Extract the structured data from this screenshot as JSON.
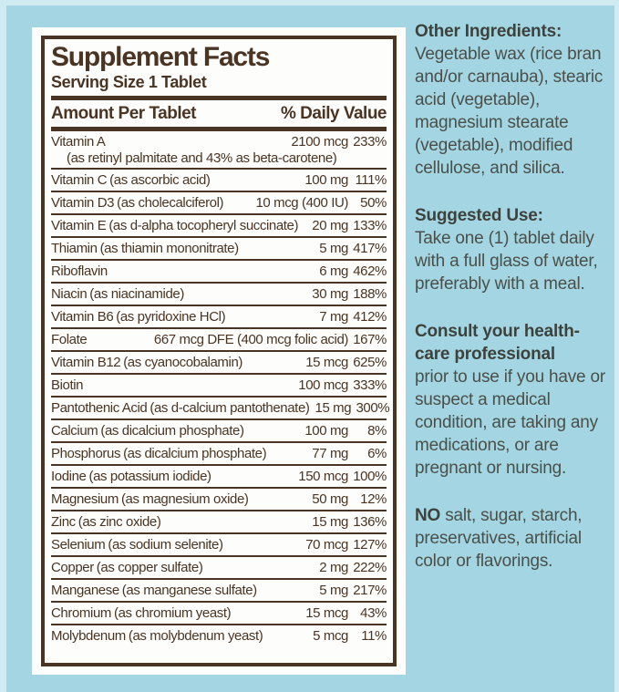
{
  "colors": {
    "bg": "#a3d6e2",
    "frame": "#cfeaf0",
    "paper": "#fdfdfb",
    "brown": "#4a3423",
    "gray": "#4b4f49",
    "gray-dark": "#3d423d"
  },
  "panel": {
    "title": "Supplement Facts",
    "serving": "Serving Size 1 Tablet",
    "col_amount": "Amount Per Tablet",
    "col_dv": "% Daily Value",
    "rows": [
      {
        "name": "Vitamin A",
        "form": "",
        "amount": "2100 mcg",
        "dv": "233%",
        "subline": "(as retinyl palmitate and 43% as beta-carotene)"
      },
      {
        "name": "Vitamin C",
        "form": "(as ascorbic acid)",
        "amount": "100 mg",
        "dv": "111%"
      },
      {
        "name": "Vitamin D3",
        "form": "(as cholecalciferol)",
        "amount": "10 mcg (400 IU)",
        "dv": "50%"
      },
      {
        "name": "Vitamin E",
        "form": "(as d-alpha tocopheryl succinate)",
        "amount": "20 mg",
        "dv": "133%"
      },
      {
        "name": "Thiamin",
        "form": "(as thiamin mononitrate)",
        "amount": "5 mg",
        "dv": "417%"
      },
      {
        "name": "Riboflavin",
        "form": "",
        "amount": "6 mg",
        "dv": "462%"
      },
      {
        "name": "Niacin",
        "form": "(as niacinamide)",
        "amount": "30 mg",
        "dv": "188%"
      },
      {
        "name": "Vitamin B6",
        "form": "(as pyridoxine HCl)",
        "amount": "7 mg",
        "dv": "412%"
      },
      {
        "name": "Folate",
        "form": "",
        "amount": "667 mcg DFE (400 mcg folic acid)",
        "dv": "167%"
      },
      {
        "name": "Vitamin B12",
        "form": "(as cyanocobalamin)",
        "amount": "15 mcg",
        "dv": "625%"
      },
      {
        "name": "Biotin",
        "form": "",
        "amount": "100 mcg",
        "dv": "333%"
      },
      {
        "name": "Pantothenic Acid",
        "form": "(as d-calcium pantothenate)",
        "amount": "15 mg",
        "dv": "300%"
      },
      {
        "name": "Calcium",
        "form": "(as dicalcium phosphate)",
        "amount": "100 mg",
        "dv": "8%"
      },
      {
        "name": "Phosphorus",
        "form": "(as dicalcium phosphate)",
        "amount": "77 mg",
        "dv": "6%"
      },
      {
        "name": "Iodine",
        "form": "(as potassium iodide)",
        "amount": "150 mcg",
        "dv": "100%"
      },
      {
        "name": "Magnesium",
        "form": "(as magnesium oxide)",
        "amount": "50 mg",
        "dv": "12%"
      },
      {
        "name": "Zinc",
        "form": "(as zinc oxide)",
        "amount": "15 mg",
        "dv": "136%"
      },
      {
        "name": "Selenium",
        "form": "(as sodium selenite)",
        "amount": "70 mcg",
        "dv": "127%"
      },
      {
        "name": "Copper",
        "form": "(as copper sulfate)",
        "amount": "2 mg",
        "dv": "222%"
      },
      {
        "name": "Manganese",
        "form": "(as manganese sulfate)",
        "amount": "5 mg",
        "dv": "217%"
      },
      {
        "name": "Chromium",
        "form": "(as chromium yeast)",
        "amount": "15 mcg",
        "dv": "43%"
      },
      {
        "name": "Molybdenum",
        "form": "(as molybdenum yeast)",
        "amount": "5 mcg",
        "dv": "11%"
      }
    ]
  },
  "sidebar": {
    "other_ingredients_heading": "Other Ingredients:",
    "other_ingredients_text": "Vegetable wax (rice bran and/or carnauba), stearic acid (vegetable), magnesium stearate (vegetable), modified cellulose, and silica.",
    "suggested_use_heading": "Suggested Use:",
    "suggested_use_text": "Take one (1) tablet daily with a full glass of water, preferably with a meal.",
    "consult_bold": "Consult your health-care professional",
    "consult_text": "prior to use if you have or suspect a medical condition, are taking any medications, or are pregnant or nursing.",
    "no_bold": "NO",
    "no_text": "salt, sugar, starch, preservatives, artificial color or flavorings."
  }
}
